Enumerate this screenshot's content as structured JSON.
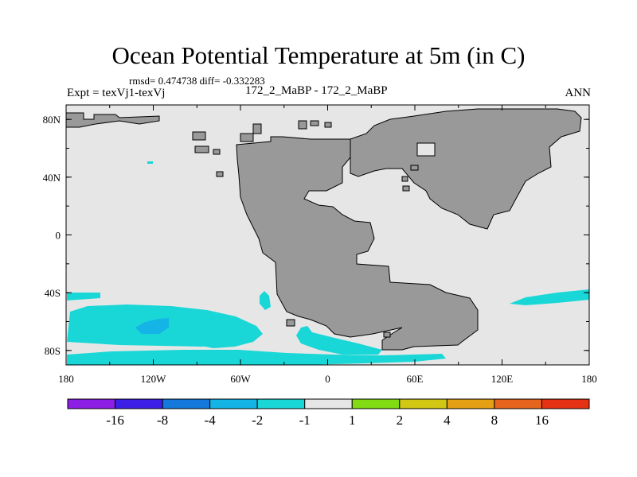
{
  "header": {
    "title": "Ocean Potential Temperature at 5m (in C)",
    "stats": "rmsd= 0.474738 diff= -0.332283",
    "experiment": "Expt = texVj1-texVj",
    "case": "172_2_MaBP - 172_2_MaBP",
    "period": "ANN"
  },
  "axes": {
    "x_ticks": [
      "180",
      "120W",
      "60W",
      "0",
      "60E",
      "120E",
      "180"
    ],
    "y_ticks": [
      "80N",
      "40N",
      "0",
      "40S",
      "80S"
    ],
    "lon_range": [
      -180,
      180
    ],
    "lat_range": [
      -90,
      90
    ]
  },
  "colors": {
    "background": "#e6e6e6",
    "land": "#999999",
    "anomaly_-2_to_-1": "#1ad7d7",
    "anomaly_-4_to_-2": "#14b4e6"
  },
  "colorbar": {
    "labels": [
      "-16",
      "-8",
      "-4",
      "-2",
      "-1",
      "1",
      "2",
      "4",
      "8",
      "16"
    ],
    "colors": [
      "#8c1ee6",
      "#3c1ee6",
      "#1478dc",
      "#14b4e6",
      "#1ad7d7",
      "#e6e6e6",
      "#82dc14",
      "#d2c814",
      "#e6a014",
      "#e6641e",
      "#e63214"
    ]
  }
}
